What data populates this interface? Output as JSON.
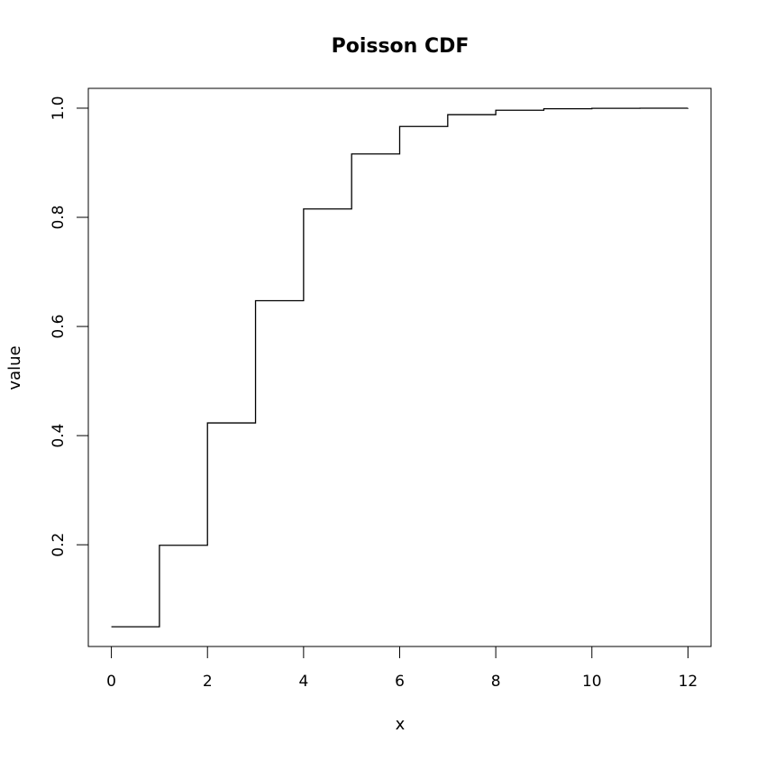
{
  "chart_data": {
    "type": "line",
    "step": true,
    "title": "Poisson CDF",
    "xlabel": "x",
    "ylabel": "value",
    "xlim": [
      -0.48,
      12.48
    ],
    "ylim": [
      0.0136,
      1.0363
    ],
    "x_ticks": [
      0,
      2,
      4,
      6,
      8,
      10,
      12
    ],
    "y_ticks": [
      0.2,
      0.4,
      0.6,
      0.8,
      1.0
    ],
    "y_tick_labels": [
      "0.2",
      "0.4",
      "0.6",
      "0.8",
      "1.0"
    ],
    "x": [
      0,
      1,
      2,
      3,
      4,
      5,
      6,
      7,
      8,
      9,
      10,
      11,
      12
    ],
    "y": [
      0.0498,
      0.1991,
      0.4232,
      0.6472,
      0.8153,
      0.9161,
      0.9665,
      0.9881,
      0.9962,
      0.9989,
      0.9997,
      0.9999,
      1.0
    ],
    "line_color": "#000000",
    "grid": false,
    "legend": "none"
  }
}
